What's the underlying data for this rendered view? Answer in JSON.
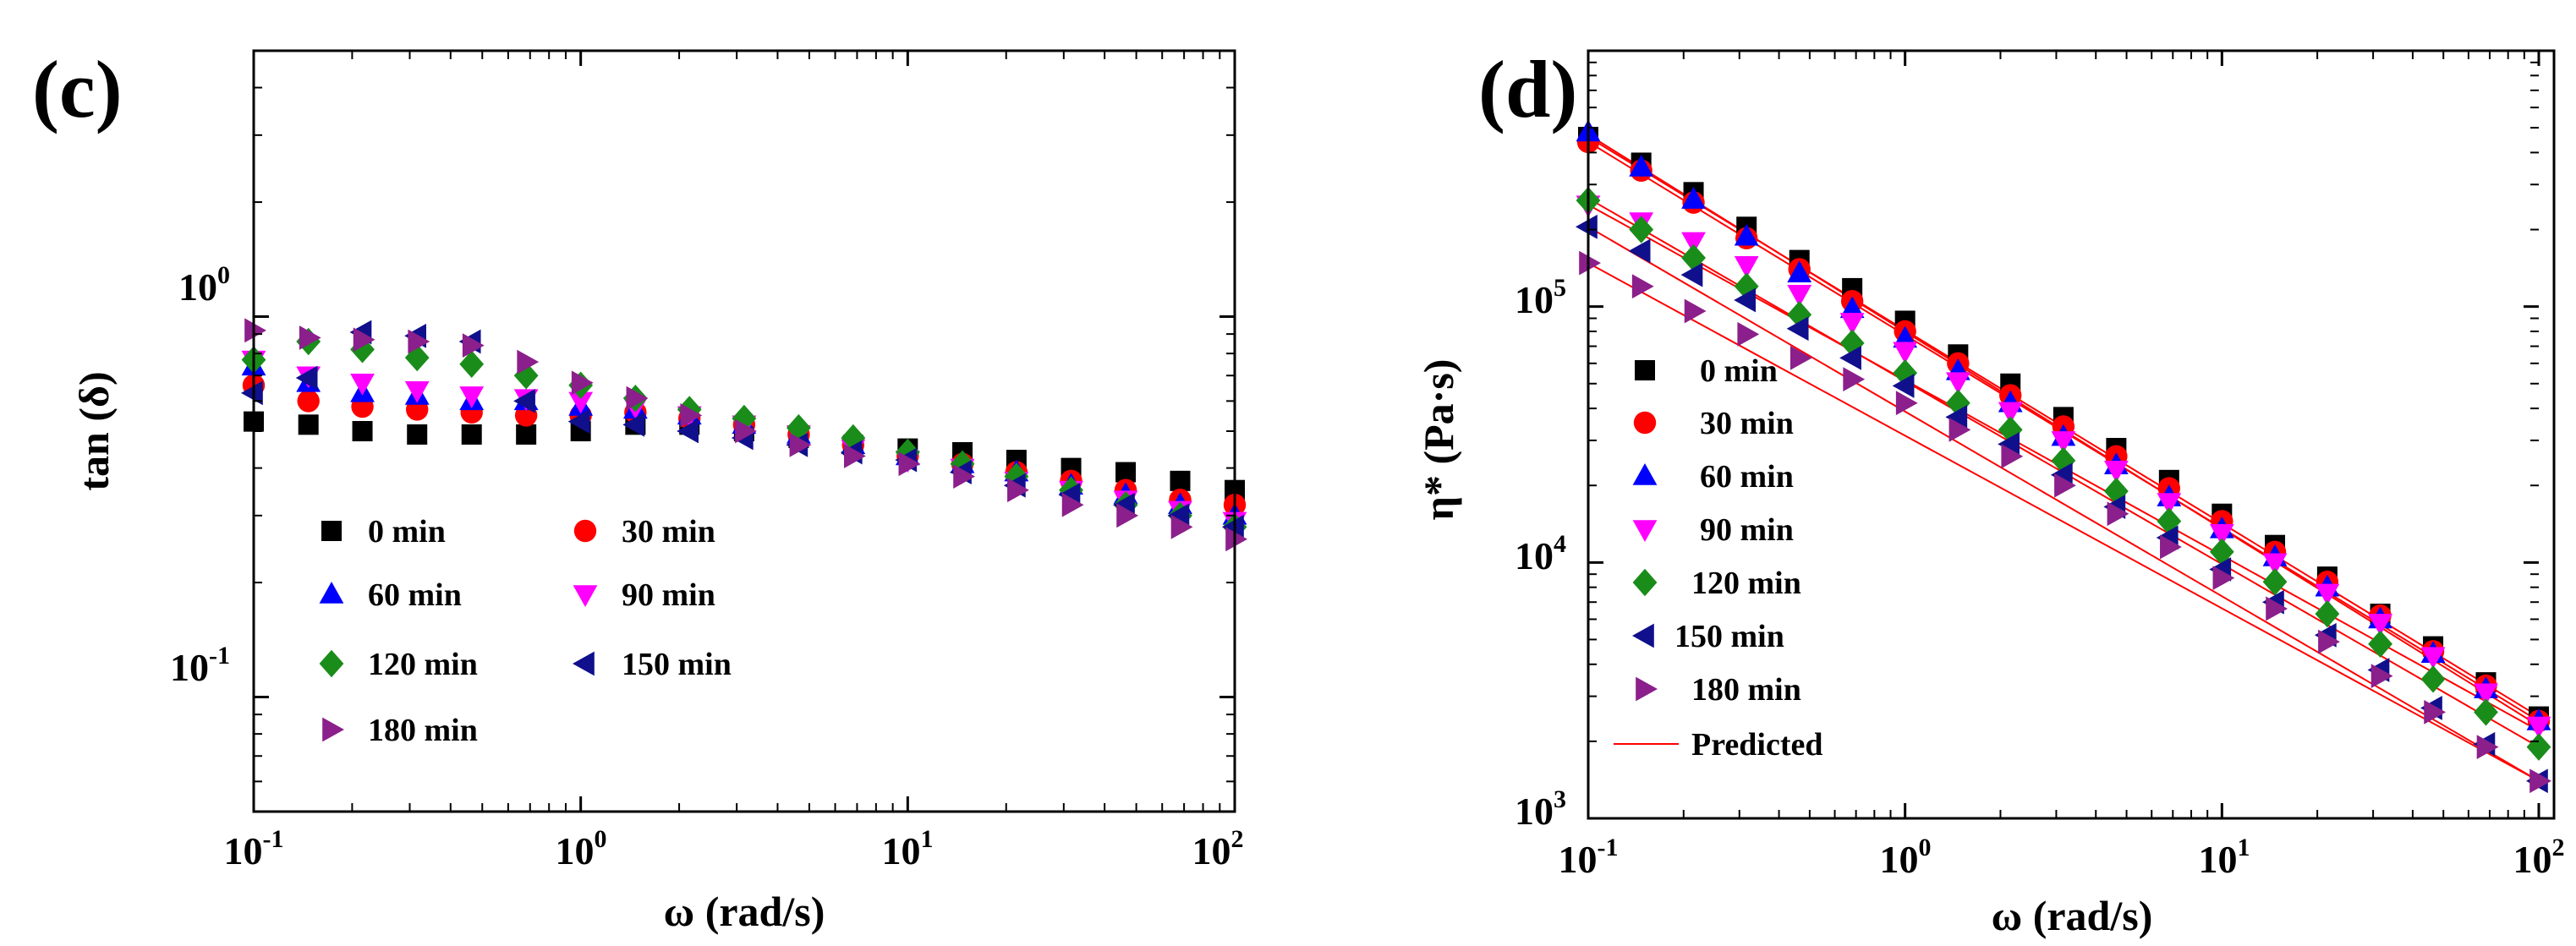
{
  "chart_data": [
    {
      "type": "scatter",
      "panel_label": "(c)",
      "xlabel": "ω (rad/s)",
      "ylabel": "tan (δ)",
      "xscale": "log",
      "yscale": "log",
      "xlim": [
        0.1,
        100
      ],
      "ylim": [
        0.05,
        5
      ],
      "xticks": [
        {
          "base": "10",
          "exp": "-1"
        },
        {
          "base": "10",
          "exp": "0"
        },
        {
          "base": "10",
          "exp": "1"
        },
        {
          "base": "10",
          "exp": "2"
        }
      ],
      "yticks": [
        {
          "base": "10",
          "exp": "-1"
        },
        {
          "base": "10",
          "exp": "0"
        }
      ],
      "legend_position": "lower-left, two columns",
      "x": [
        0.1,
        0.147,
        0.215,
        0.316,
        0.464,
        0.681,
        1.0,
        1.47,
        2.15,
        3.16,
        4.64,
        6.81,
        10,
        14.7,
        21.5,
        31.6,
        46.4,
        68.1,
        100
      ],
      "series": [
        {
          "name": "0 min",
          "color": "#000000",
          "marker": "square",
          "values": [
            0.53,
            0.52,
            0.5,
            0.49,
            0.49,
            0.49,
            0.5,
            0.52,
            0.52,
            0.5,
            0.48,
            0.46,
            0.45,
            0.44,
            0.42,
            0.4,
            0.39,
            0.37,
            0.35
          ]
        },
        {
          "name": "30 min",
          "color": "#ff0000",
          "marker": "circle",
          "values": [
            0.66,
            0.6,
            0.58,
            0.57,
            0.56,
            0.55,
            0.55,
            0.56,
            0.54,
            0.52,
            0.49,
            0.46,
            0.43,
            0.41,
            0.39,
            0.37,
            0.35,
            0.33,
            0.32
          ]
        },
        {
          "name": "60 min",
          "color": "#0000ff",
          "marker": "triangle-up",
          "values": [
            0.74,
            0.67,
            0.63,
            0.62,
            0.6,
            0.6,
            0.58,
            0.57,
            0.55,
            0.52,
            0.49,
            0.46,
            0.43,
            0.41,
            0.39,
            0.36,
            0.34,
            0.32,
            0.3
          ]
        },
        {
          "name": "90 min",
          "color": "#ff00ff",
          "marker": "triangle-down",
          "values": [
            0.77,
            0.7,
            0.67,
            0.64,
            0.62,
            0.61,
            0.6,
            0.58,
            0.55,
            0.52,
            0.49,
            0.45,
            0.42,
            0.4,
            0.37,
            0.35,
            0.33,
            0.31,
            0.29
          ]
        },
        {
          "name": "120 min",
          "color": "#1a8c1a",
          "marker": "diamond",
          "values": [
            0.77,
            0.86,
            0.82,
            0.78,
            0.75,
            0.7,
            0.66,
            0.61,
            0.57,
            0.54,
            0.51,
            0.48,
            0.44,
            0.41,
            0.38,
            0.35,
            0.32,
            0.3,
            0.28
          ]
        },
        {
          "name": "150 min",
          "color": "#10108c",
          "marker": "triangle-left",
          "values": [
            0.63,
            0.69,
            0.91,
            0.89,
            0.86,
            0.6,
            0.53,
            0.52,
            0.5,
            0.48,
            0.46,
            0.44,
            0.42,
            0.39,
            0.36,
            0.34,
            0.32,
            0.3,
            0.28
          ]
        },
        {
          "name": "180 min",
          "color": "#8b1f8b",
          "marker": "triangle-right",
          "values": [
            0.92,
            0.88,
            0.87,
            0.86,
            0.84,
            0.76,
            0.67,
            0.61,
            0.55,
            0.5,
            0.46,
            0.43,
            0.41,
            0.38,
            0.35,
            0.32,
            0.3,
            0.28,
            0.26
          ]
        }
      ]
    },
    {
      "type": "scatter",
      "panel_label": "(d)",
      "xlabel": "ω (rad/s)",
      "ylabel": "η* (Pa·s)",
      "xscale": "log",
      "yscale": "log",
      "xlim": [
        0.1,
        100
      ],
      "ylim": [
        1000,
        1000000
      ],
      "xticks": [
        {
          "base": "10",
          "exp": "-1"
        },
        {
          "base": "10",
          "exp": "0"
        },
        {
          "base": "10",
          "exp": "1"
        },
        {
          "base": "10",
          "exp": "2"
        }
      ],
      "yticks": [
        {
          "base": "10",
          "exp": "3"
        },
        {
          "base": "10",
          "exp": "4"
        },
        {
          "base": "10",
          "exp": "5"
        }
      ],
      "legend_position": "left, one column",
      "predicted_label": "Predicted",
      "predicted_color": "#ff0000",
      "x": [
        0.1,
        0.147,
        0.215,
        0.316,
        0.464,
        0.681,
        1.0,
        1.47,
        2.15,
        3.16,
        4.64,
        6.81,
        10,
        14.7,
        21.5,
        31.6,
        46.4,
        68.1,
        100
      ],
      "series": [
        {
          "name": "0 min",
          "color": "#000000",
          "marker": "square",
          "values": [
            460000,
            365000,
            280000,
            205000,
            152000,
            118000,
            88000,
            65000,
            50000,
            37000,
            28000,
            21000,
            15500,
            11700,
            8800,
            6300,
            4700,
            3400,
            2500
          ],
          "predicted": [
            460000,
            2500
          ]
        },
        {
          "name": "30 min",
          "color": "#ff0000",
          "marker": "circle",
          "values": [
            440000,
            340000,
            255000,
            185000,
            140000,
            105000,
            80000,
            60000,
            45000,
            34000,
            26000,
            19500,
            14500,
            11000,
            8400,
            6200,
            4500,
            3300,
            2400
          ],
          "predicted": [
            440000,
            2400
          ]
        },
        {
          "name": "60 min",
          "color": "#0000ff",
          "marker": "triangle-up",
          "values": [
            480000,
            350000,
            262000,
            188000,
            135000,
            98000,
            75000,
            56000,
            42000,
            31000,
            24000,
            18000,
            13500,
            10500,
            8000,
            6000,
            4400,
            3200,
            2400
          ],
          "predicted": [
            470000,
            2300
          ]
        },
        {
          "name": "90 min",
          "color": "#ff00ff",
          "marker": "triangle-down",
          "values": [
            250000,
            215000,
            180000,
            145000,
            112000,
            87000,
            67000,
            51000,
            39000,
            30000,
            23000,
            17200,
            13000,
            10000,
            7600,
            5800,
            4300,
            3100,
            2300
          ],
          "predicted": [
            250000,
            2200
          ]
        },
        {
          "name": "120 min",
          "color": "#1a8c1a",
          "marker": "diamond",
          "values": [
            260000,
            200000,
            155000,
            120000,
            93000,
            72000,
            55000,
            42000,
            33000,
            25000,
            19000,
            14500,
            11000,
            8400,
            6300,
            4800,
            3500,
            2600,
            1900
          ],
          "predicted": [
            265000,
            1900
          ]
        },
        {
          "name": "150 min",
          "color": "#10108c",
          "marker": "triangle-left",
          "values": [
            205000,
            165000,
            133000,
            106000,
            82000,
            63000,
            49000,
            37000,
            29000,
            22000,
            16500,
            12500,
            9400,
            7000,
            5200,
            3800,
            2700,
            1950,
            1400
          ],
          "predicted": [
            205000,
            1400
          ]
        },
        {
          "name": "180 min",
          "color": "#8b1f8b",
          "marker": "triangle-right",
          "values": [
            148000,
            120000,
            96000,
            78000,
            63000,
            52000,
            42000,
            33000,
            26000,
            20000,
            15500,
            11500,
            8700,
            6600,
            4900,
            3600,
            2600,
            1900,
            1400
          ],
          "predicted": [
            148000,
            1400
          ]
        }
      ]
    }
  ]
}
